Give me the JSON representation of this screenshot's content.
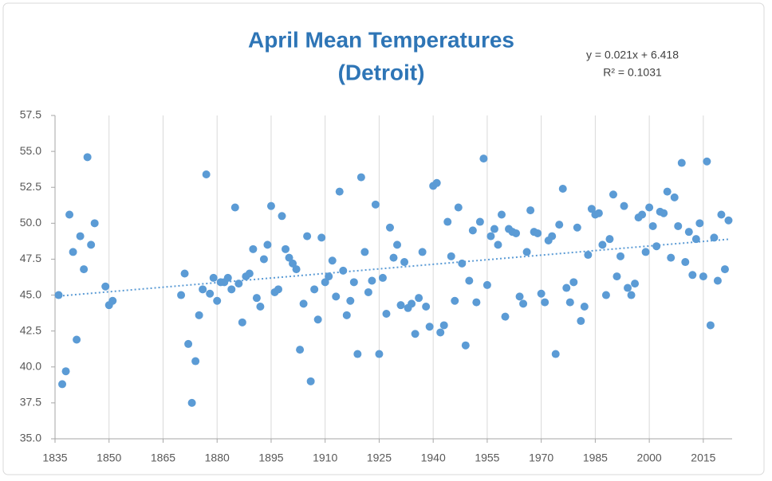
{
  "chart_data": {
    "type": "scatter",
    "title": [
      "April Mean Temperatures",
      "(Detroit)"
    ],
    "trendline": {
      "equation": "y = 0.021x + 6.418",
      "r_squared": "R² = 0.1031",
      "color": "#5b9bd5"
    },
    "color": "#5b9bd5",
    "grid": true,
    "xlim": [
      1835,
      2023
    ],
    "xticks": [
      1835,
      1850,
      1865,
      1880,
      1895,
      1910,
      1925,
      1940,
      1955,
      1970,
      1985,
      2000,
      2015
    ],
    "ylim": [
      35,
      57.5
    ],
    "yticks": [
      {
        "value": 35,
        "label": "35.0"
      },
      37.5,
      {
        "value": 40,
        "label": "40.0"
      },
      42.5,
      {
        "value": 45,
        "label": "45.0"
      },
      47.5,
      {
        "value": 50,
        "label": "50.0"
      },
      52.5,
      {
        "value": 55,
        "label": "55.0"
      },
      57.5
    ],
    "x": [
      1836,
      1837,
      1838,
      1839,
      1840,
      1841,
      1842,
      1843,
      1844,
      1845,
      1846,
      1849,
      1850,
      1851,
      1870,
      1871,
      1872,
      1873,
      1874,
      1875,
      1876,
      1877,
      1878,
      1879,
      1880,
      1881,
      1882,
      1883,
      1884,
      1885,
      1886,
      1887,
      1888,
      1889,
      1890,
      1891,
      1892,
      1893,
      1894,
      1895,
      1896,
      1897,
      1898,
      1899,
      1900,
      1901,
      1902,
      1903,
      1904,
      1905,
      1906,
      1907,
      1908,
      1909,
      1910,
      1911,
      1912,
      1913,
      1914,
      1915,
      1916,
      1917,
      1918,
      1919,
      1920,
      1921,
      1922,
      1923,
      1924,
      1925,
      1926,
      1927,
      1928,
      1929,
      1930,
      1931,
      1932,
      1933,
      1934,
      1935,
      1936,
      1937,
      1938,
      1939,
      1940,
      1941,
      1942,
      1943,
      1944,
      1945,
      1946,
      1947,
      1948,
      1949,
      1950,
      1951,
      1952,
      1953,
      1954,
      1955,
      1956,
      1957,
      1958,
      1959,
      1960,
      1961,
      1962,
      1963,
      1964,
      1965,
      1966,
      1967,
      1968,
      1969,
      1970,
      1971,
      1972,
      1973,
      1974,
      1975,
      1976,
      1977,
      1978,
      1979,
      1980,
      1981,
      1982,
      1983,
      1984,
      1985,
      1986,
      1987,
      1988,
      1989,
      1990,
      1991,
      1992,
      1993,
      1994,
      1995,
      1996,
      1997,
      1998,
      1999,
      2000,
      2001,
      2002,
      2003,
      2004,
      2005,
      2006,
      2007,
      2008,
      2009,
      2010,
      2011,
      2012,
      2013,
      2014,
      2015,
      2016,
      2017,
      2018,
      2019,
      2020,
      2021,
      2022
    ],
    "values": [
      45.0,
      38.8,
      39.7,
      50.6,
      48.0,
      41.9,
      49.1,
      46.8,
      54.6,
      48.5,
      50.0,
      45.6,
      44.3,
      44.6,
      45.0,
      46.5,
      41.6,
      37.5,
      40.4,
      43.6,
      45.4,
      53.4,
      45.1,
      46.2,
      44.6,
      45.9,
      45.9,
      46.2,
      45.4,
      51.1,
      45.8,
      43.1,
      46.3,
      46.5,
      48.2,
      44.8,
      44.2,
      47.5,
      48.5,
      51.2,
      45.2,
      45.4,
      50.5,
      48.2,
      47.6,
      47.2,
      46.8,
      41.2,
      44.4,
      49.1,
      39.0,
      45.4,
      43.3,
      49.0,
      45.9,
      46.3,
      47.4,
      44.9,
      52.2,
      46.7,
      43.6,
      44.6,
      45.9,
      40.9,
      53.2,
      48.0,
      45.2,
      46.0,
      51.3,
      40.9,
      46.2,
      43.7,
      49.7,
      47.6,
      48.5,
      44.3,
      47.3,
      44.1,
      44.4,
      42.3,
      44.8,
      48.0,
      44.2,
      42.8,
      52.6,
      52.8,
      42.4,
      42.9,
      50.1,
      47.7,
      44.6,
      51.1,
      47.2,
      41.5,
      46.0,
      49.5,
      44.5,
      50.1,
      54.5,
      45.7,
      49.1,
      49.6,
      48.5,
      50.6,
      43.5,
      49.6,
      49.4,
      49.3,
      44.9,
      44.4,
      48.0,
      50.9,
      49.4,
      49.3,
      45.1,
      44.5,
      48.8,
      49.1,
      40.9,
      49.9,
      52.4,
      45.5,
      44.5,
      45.9,
      49.7,
      43.2,
      44.2,
      47.8,
      51.0,
      50.6,
      50.7,
      48.5,
      45.0,
      48.9,
      52.0,
      46.3,
      47.7,
      51.2,
      45.5,
      45.0,
      45.8,
      50.4,
      50.6,
      48.0,
      51.1,
      49.8,
      48.4,
      50.8,
      50.7,
      52.2,
      47.6,
      51.8,
      49.8,
      54.2,
      47.3,
      49.4,
      46.4,
      48.9,
      50.0,
      46.3,
      54.3,
      42.9,
      49.0,
      46.0,
      50.6,
      46.8,
      50.2
    ]
  }
}
